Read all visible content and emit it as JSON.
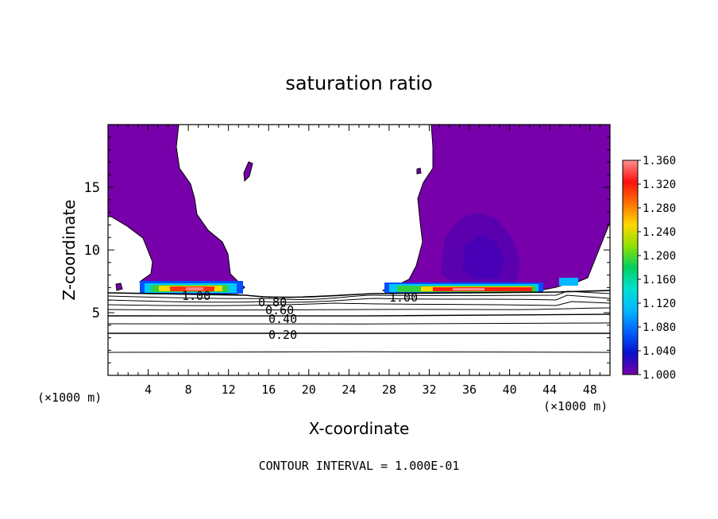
{
  "chart_data": {
    "type": "heatmap",
    "title": "saturation ratio",
    "xlabel": "X-coordinate",
    "ylabel": "Z-coordinate",
    "x_unit_left": "(×1000 m)",
    "x_unit_right": "(×1000 m)",
    "footer": "CONTOUR INTERVAL = 1.000E-01",
    "xlim": [
      0,
      50
    ],
    "ylim": [
      0,
      20
    ],
    "x_ticks": [
      "4",
      "8",
      "12",
      "16",
      "20",
      "24",
      "28",
      "32",
      "36",
      "40",
      "44",
      "48"
    ],
    "y_ticks": [
      "5",
      "10",
      "15"
    ],
    "colorbar": {
      "min": 1.0,
      "max": 1.36,
      "labels": [
        "1.000",
        "1.040",
        "1.080",
        "1.120",
        "1.160",
        "1.200",
        "1.240",
        "1.280",
        "1.320",
        "1.360"
      ],
      "colors": [
        "#7700aa",
        "#0a10cc",
        "#0060ff",
        "#00b8ff",
        "#00e0d0",
        "#00d060",
        "#90e000",
        "#ffd800",
        "#ff7000",
        "#ff1010",
        "#ff9090"
      ]
    },
    "contours": [
      {
        "label": "0.20",
        "z": 3.5,
        "x_label": 17.5
      },
      {
        "label": "0.40",
        "z": 4.6,
        "x_label": 17.5
      },
      {
        "label": "0.60",
        "z": 5.3,
        "x_label": 17.5
      },
      {
        "label": "0.80",
        "z": 5.9,
        "x_label": 15.8
      },
      {
        "label": "1.00",
        "z": 6.3,
        "x_label": 7.8
      },
      {
        "label": "1.00",
        "z": 6.3,
        "x_label": 28.3
      }
    ],
    "supersaturated_regions": [
      {
        "x": [
          0,
          14
        ],
        "z": [
          6.3,
          20
        ],
        "peak": 1.34
      },
      {
        "x": [
          31,
          50
        ],
        "z": [
          6.3,
          20
        ],
        "peak": 1.34
      }
    ]
  }
}
